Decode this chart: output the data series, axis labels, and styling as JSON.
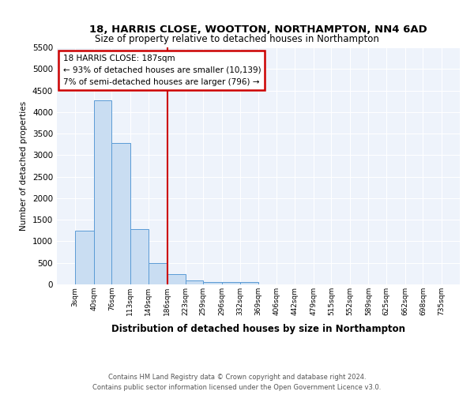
{
  "title_line1": "18, HARRIS CLOSE, WOOTTON, NORTHAMPTON, NN4 6AD",
  "title_line2": "Size of property relative to detached houses in Northampton",
  "xlabel": "Distribution of detached houses by size in Northampton",
  "ylabel": "Number of detached properties",
  "footer_line1": "Contains HM Land Registry data © Crown copyright and database right 2024.",
  "footer_line2": "Contains public sector information licensed under the Open Government Licence v3.0.",
  "annotation_line1": "18 HARRIS CLOSE: 187sqm",
  "annotation_line2": "← 93% of detached houses are smaller (10,139)",
  "annotation_line3": "7% of semi-detached houses are larger (796) →",
  "property_size": 187,
  "bin_edges": [
    3,
    40,
    76,
    113,
    149,
    186,
    223,
    259,
    296,
    332,
    369,
    406,
    442,
    479,
    515,
    552,
    589,
    625,
    662,
    698,
    735
  ],
  "bar_heights": [
    1250,
    4280,
    3280,
    1280,
    490,
    230,
    90,
    60,
    55,
    55,
    0,
    0,
    0,
    0,
    0,
    0,
    0,
    0,
    0,
    0
  ],
  "bar_color": "#c9ddf2",
  "bar_edge_color": "#5b9bd5",
  "line_color": "#cc0000",
  "annotation_box_color": "#cc0000",
  "grid_color": "#c8daf0",
  "bg_color": "#eef3fb",
  "ylim": [
    0,
    5500
  ],
  "yticks": [
    0,
    500,
    1000,
    1500,
    2000,
    2500,
    3000,
    3500,
    4000,
    4500,
    5000,
    5500
  ]
}
